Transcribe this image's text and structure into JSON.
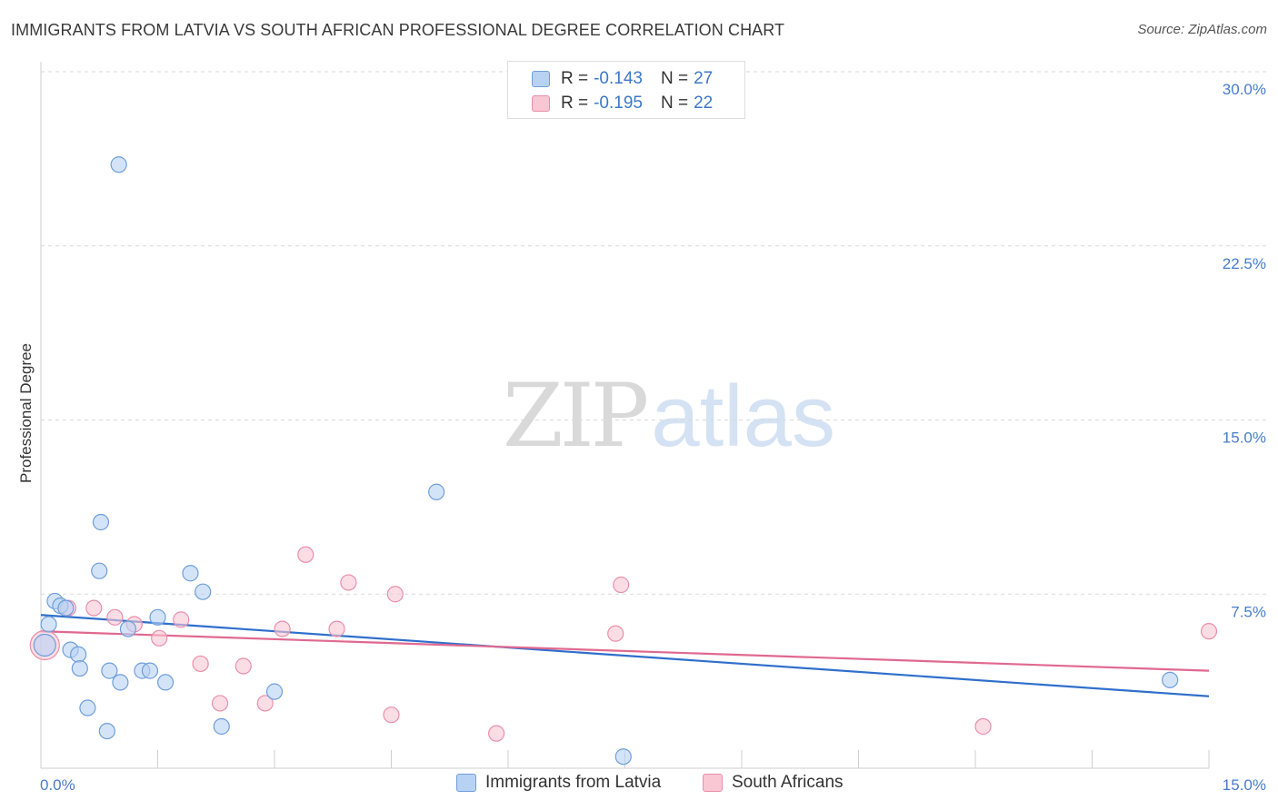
{
  "title": "IMMIGRANTS FROM LATVIA VS SOUTH AFRICAN PROFESSIONAL DEGREE CORRELATION CHART",
  "source": "Source: ZipAtlas.com",
  "watermark": {
    "zip": "ZIP",
    "atlas": "atlas"
  },
  "legend": {
    "rows": [
      {
        "r_label": "R =",
        "r_value": "-0.143",
        "n_label": "N =",
        "n_value": "27"
      },
      {
        "r_label": "R =",
        "r_value": "-0.195",
        "n_label": "N =",
        "n_value": "22"
      }
    ]
  },
  "colors": {
    "latvia_fill": "#b8d2f4",
    "latvia_stroke": "#6f9edb",
    "latvia_line": "#2f6fcc",
    "sa_fill": "#f9c6d4",
    "sa_stroke": "#ea8fab",
    "sa_line": "#e0698f",
    "tick_text": "#4a7cc9",
    "grid": "#d9d9d9"
  },
  "chart_data": {
    "type": "scatter",
    "title": "IMMIGRANTS FROM LATVIA VS SOUTH AFRICAN PROFESSIONAL DEGREE CORRELATION CHART",
    "xlabel": "",
    "ylabel": "Professional Degree",
    "xlim": [
      0,
      15
    ],
    "ylim": [
      0,
      30
    ],
    "x_tick_labels": [
      "0.0%",
      "15.0%"
    ],
    "y_ticks": [
      7.5,
      15.0,
      22.5,
      30.0
    ],
    "y_tick_labels": [
      "7.5%",
      "15.0%",
      "22.5%",
      "30.0%"
    ],
    "grid": true,
    "legend_position": "bottom",
    "series": [
      {
        "name": "Immigrants from Latvia",
        "r": -0.143,
        "n": 27,
        "points": [
          [
            0.05,
            5.3
          ],
          [
            0.1,
            6.2
          ],
          [
            0.18,
            7.2
          ],
          [
            0.25,
            7.0
          ],
          [
            0.32,
            6.9
          ],
          [
            0.38,
            5.1
          ],
          [
            0.48,
            4.9
          ],
          [
            0.5,
            4.3
          ],
          [
            0.6,
            2.6
          ],
          [
            0.75,
            8.5
          ],
          [
            0.77,
            10.6
          ],
          [
            0.85,
            1.6
          ],
          [
            0.88,
            4.2
          ],
          [
            1.02,
            3.7
          ],
          [
            1.0,
            26.0
          ],
          [
            1.12,
            6.0
          ],
          [
            1.3,
            4.2
          ],
          [
            1.4,
            4.2
          ],
          [
            1.5,
            6.5
          ],
          [
            1.6,
            3.7
          ],
          [
            1.92,
            8.4
          ],
          [
            2.08,
            7.6
          ],
          [
            2.32,
            1.8
          ],
          [
            3.0,
            3.3
          ],
          [
            5.08,
            11.9
          ],
          [
            7.48,
            0.5
          ],
          [
            14.5,
            3.8
          ]
        ],
        "trend": {
          "x": [
            0,
            15
          ],
          "y": [
            6.6,
            3.1
          ]
        }
      },
      {
        "name": "South Africans",
        "r": -0.195,
        "n": 22,
        "points": [
          [
            0.05,
            5.3
          ],
          [
            0.35,
            6.9
          ],
          [
            0.68,
            6.9
          ],
          [
            0.95,
            6.5
          ],
          [
            1.2,
            6.2
          ],
          [
            1.52,
            5.6
          ],
          [
            1.8,
            6.4
          ],
          [
            2.05,
            4.5
          ],
          [
            2.3,
            2.8
          ],
          [
            2.6,
            4.4
          ],
          [
            2.88,
            2.8
          ],
          [
            3.1,
            6.0
          ],
          [
            3.4,
            9.2
          ],
          [
            3.8,
            6.0
          ],
          [
            3.95,
            8.0
          ],
          [
            4.5,
            2.3
          ],
          [
            4.55,
            7.5
          ],
          [
            5.85,
            1.5
          ],
          [
            7.38,
            5.8
          ],
          [
            7.45,
            7.9
          ],
          [
            12.1,
            1.8
          ],
          [
            15.0,
            5.9
          ]
        ],
        "trend": {
          "x": [
            0,
            15
          ],
          "y": [
            5.9,
            4.2
          ]
        }
      }
    ]
  }
}
